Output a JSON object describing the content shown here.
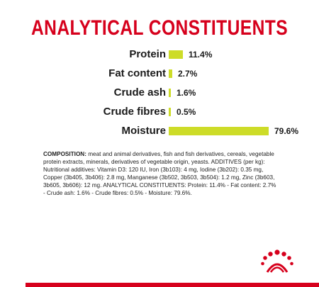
{
  "title": "ANALYTICAL CONSTITUENTS",
  "constituents": [
    {
      "label": "Protein",
      "value": "11.4%",
      "fraction": 0.143
    },
    {
      "label": "Fat content",
      "value": "2.7%",
      "fraction": 0.034
    },
    {
      "label": "Crude ash",
      "value": "1.6%",
      "fraction": 0.02
    },
    {
      "label": "Crude fibres",
      "value": "0.5%",
      "fraction": 0.006
    },
    {
      "label": "Moisture",
      "value": "79.6%",
      "fraction": 1.0
    }
  ],
  "composition": {
    "heading": "COMPOSITION:",
    "text": " meat and animal derivatives, fish and fish derivatives, cereals, vegetable protein extracts, minerals, derivatives of vegetable origin, yeasts. ADDITIVES (per kg): Nutritional additives: Vitamin D3: 120 IU, Iron (3b103): 4 mg, Iodine (3b202): 0.35 mg, Copper (3b405, 3b406): 2.8 mg, Manganese (3b502, 3b503, 3b504): 1.2 mg, Zinc (3b603, 3b605, 3b606): 12 mg. ANALYTICAL CONSTITUENTS: Protein: 11.4% - Fat content: 2.7% - Crude ash: 1.6% - Crude fibres: 0.5% - Moisture: 79.6%."
  },
  "colors": {
    "accent": "#d6001c",
    "bar": "#cddc28"
  },
  "logo": "royal-canin-crown-icon"
}
